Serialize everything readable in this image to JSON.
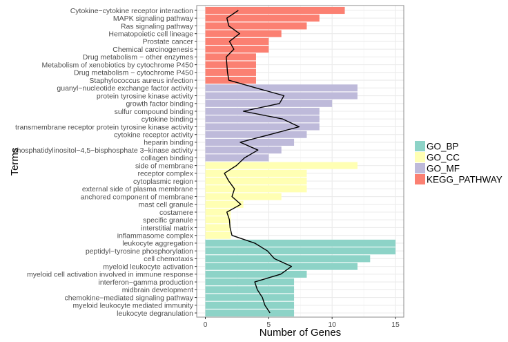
{
  "chart_data": {
    "type": "bar",
    "orientation": "horizontal",
    "title": "",
    "xlabel": "Number of Genes",
    "ylabel": "Terms",
    "xlim": [
      0,
      15.7
    ],
    "x_ticks": [
      0,
      5,
      10,
      15
    ],
    "grid": true,
    "legend_position": "right",
    "legend": [
      {
        "name": "GO_BP",
        "color": "#8dd3c7"
      },
      {
        "name": "GO_CC",
        "color": "#ffffb3"
      },
      {
        "name": "GO_MF",
        "color": "#bebada"
      },
      {
        "name": "KEGG_PATHWAY",
        "color": "#fb8072"
      }
    ],
    "categories": [
      "Cytokine−cytokine receptor interaction",
      "MAPK signaling pathway",
      "Ras signaling pathway",
      "Hematopoietic cell lineage",
      "Prostate cancer",
      "Chemical carcinogenesis",
      "Drug metabolism − other enzymes",
      "Metabolism of xenobiotics by cytochrome P450",
      "Drug metabolism − cytochrome P450",
      "Staphylococcus aureus infection",
      "guanyl−nucleotide exchange factor activity",
      "protein tyrosine kinase activity",
      "growth factor binding",
      "sulfur compound binding",
      "cytokine binding",
      "transmembrane receptor protein tyrosine kinase activity",
      "cytokine receptor activity",
      "heparin binding",
      "phosphatidylinositol−4,5−bisphosphate 3−kinase activity",
      "collagen binding",
      "side of membrane",
      "receptor complex",
      "cytoplasmic region",
      "external side of plasma membrane",
      "anchored component of membrane",
      "mast cell granule",
      "costamere",
      "specific granule",
      "interstitial matrix",
      "inflammasome complex",
      "leukocyte aggregation",
      "peptidyl−tyrosine phosphorylation",
      "cell chemotaxis",
      "myeloid leukocyte activation",
      "myeloid cell activation involved in immune response",
      "interferon−gamma production",
      "midbrain development",
      "chemokine−mediated signaling pathway",
      "myeloid leukocyte mediated immunity",
      "leukocyte degranulation"
    ],
    "groups": [
      "KEGG_PATHWAY",
      "KEGG_PATHWAY",
      "KEGG_PATHWAY",
      "KEGG_PATHWAY",
      "KEGG_PATHWAY",
      "KEGG_PATHWAY",
      "KEGG_PATHWAY",
      "KEGG_PATHWAY",
      "KEGG_PATHWAY",
      "KEGG_PATHWAY",
      "GO_MF",
      "GO_MF",
      "GO_MF",
      "GO_MF",
      "GO_MF",
      "GO_MF",
      "GO_MF",
      "GO_MF",
      "GO_MF",
      "GO_MF",
      "GO_CC",
      "GO_CC",
      "GO_CC",
      "GO_CC",
      "GO_CC",
      "GO_CC",
      "GO_CC",
      "GO_CC",
      "GO_CC",
      "GO_CC",
      "GO_BP",
      "GO_BP",
      "GO_BP",
      "GO_BP",
      "GO_BP",
      "GO_BP",
      "GO_BP",
      "GO_BP",
      "GO_BP",
      "GO_BP"
    ],
    "values": [
      11,
      9,
      8,
      6,
      5,
      5,
      4,
      4,
      4,
      4,
      12,
      12,
      10,
      9,
      9,
      9,
      8,
      7,
      6,
      5,
      12,
      8,
      8,
      8,
      6,
      3,
      2,
      2,
      2,
      2,
      15,
      15,
      13,
      12,
      8,
      7,
      7,
      7,
      7,
      7
    ],
    "line_series": {
      "name": "line",
      "color": "#000000",
      "values": [
        2.6,
        1.7,
        1.85,
        2.7,
        1.9,
        2.25,
        1.65,
        1.7,
        1.75,
        1.85,
        4.0,
        6.2,
        5.85,
        3.0,
        6.1,
        7.4,
        5.1,
        2.75,
        4.15,
        3.1,
        2.45,
        1.5,
        1.85,
        2.3,
        2.1,
        2.8,
        1.7,
        1.9,
        1.95,
        2.1,
        3.9,
        4.9,
        5.45,
        6.8,
        5.95,
        3.9,
        4.1,
        4.5,
        4.7,
        5.1
      ]
    }
  }
}
